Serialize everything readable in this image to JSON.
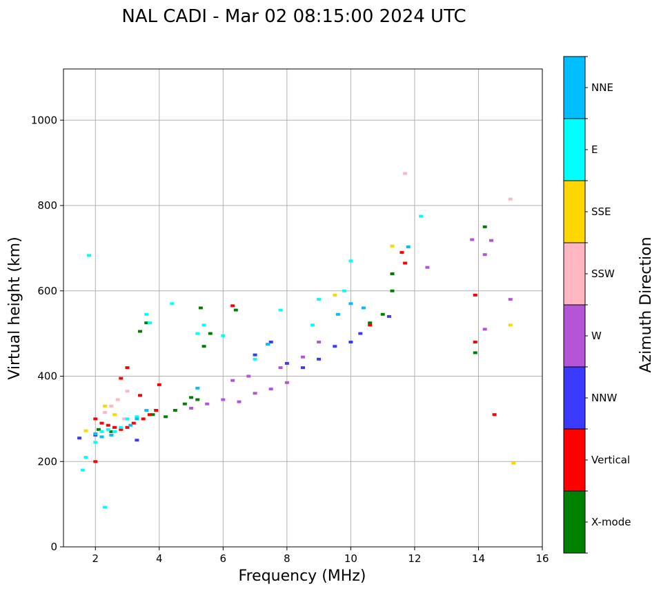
{
  "chart_data": {
    "type": "scatter",
    "title": "NAL CADI - Mar 02 08:15:00 2024 UTC",
    "xlabel": "Frequency (MHz)",
    "ylabel": "Virtual height (km)",
    "xlim": [
      1,
      16
    ],
    "ylim": [
      0,
      1120
    ],
    "xticks": [
      "2",
      "4",
      "6",
      "8",
      "10",
      "12",
      "14",
      "16"
    ],
    "yticks": [
      "0",
      "200",
      "400",
      "600",
      "800",
      "1000"
    ],
    "grid": true,
    "colorbar": {
      "label": "Azimuth Direction",
      "categories": [
        {
          "name": "X-mode",
          "color": "#008000"
        },
        {
          "name": "Vertical",
          "color": "#ff0000"
        },
        {
          "name": "NNW",
          "color": "#3a3aff"
        },
        {
          "name": "W",
          "color": "#b455d6"
        },
        {
          "name": "SSW",
          "color": "#ffb6c1"
        },
        {
          "name": "SSE",
          "color": "#ffd700"
        },
        {
          "name": "E",
          "color": "#00ffff"
        },
        {
          "name": "NNE",
          "color": "#00bfff"
        }
      ]
    },
    "series": [
      {
        "name": "X-mode",
        "points": [
          [
            2.1,
            275
          ],
          [
            2.5,
            270
          ],
          [
            3.8,
            310
          ],
          [
            4.2,
            305
          ],
          [
            4.5,
            320
          ],
          [
            4.8,
            335
          ],
          [
            5.0,
            350
          ],
          [
            5.2,
            345
          ],
          [
            6.4,
            555
          ],
          [
            10.6,
            525
          ],
          [
            11.0,
            545
          ],
          [
            11.3,
            600
          ],
          [
            11.3,
            640
          ],
          [
            13.9,
            455
          ],
          [
            14.2,
            750
          ],
          [
            3.6,
            525
          ],
          [
            3.4,
            505
          ],
          [
            5.4,
            470
          ],
          [
            5.6,
            500
          ],
          [
            5.3,
            560
          ]
        ]
      },
      {
        "name": "Vertical",
        "points": [
          [
            2.0,
            300
          ],
          [
            2.2,
            290
          ],
          [
            2.4,
            285
          ],
          [
            2.6,
            280
          ],
          [
            2.8,
            275
          ],
          [
            3.0,
            280
          ],
          [
            3.2,
            290
          ],
          [
            3.5,
            300
          ],
          [
            3.7,
            310
          ],
          [
            3.9,
            320
          ],
          [
            4.0,
            380
          ],
          [
            3.0,
            420
          ],
          [
            2.8,
            395
          ],
          [
            3.4,
            355
          ],
          [
            6.3,
            565
          ],
          [
            10.6,
            520
          ],
          [
            11.7,
            665
          ],
          [
            11.6,
            690
          ],
          [
            13.9,
            480
          ],
          [
            13.9,
            590
          ],
          [
            14.5,
            310
          ],
          [
            2.0,
            200
          ]
        ]
      },
      {
        "name": "NNW",
        "points": [
          [
            1.5,
            255
          ],
          [
            2.0,
            262
          ],
          [
            3.3,
            250
          ],
          [
            7.0,
            450
          ],
          [
            7.5,
            480
          ],
          [
            8.0,
            430
          ],
          [
            8.5,
            420
          ],
          [
            9.0,
            440
          ],
          [
            9.5,
            470
          ],
          [
            10.0,
            480
          ],
          [
            10.3,
            500
          ],
          [
            11.2,
            540
          ]
        ]
      },
      {
        "name": "W",
        "points": [
          [
            5.0,
            325
          ],
          [
            5.5,
            335
          ],
          [
            6.0,
            345
          ],
          [
            6.5,
            340
          ],
          [
            7.0,
            360
          ],
          [
            7.5,
            370
          ],
          [
            8.0,
            385
          ],
          [
            6.8,
            400
          ],
          [
            6.3,
            390
          ],
          [
            7.8,
            420
          ],
          [
            8.5,
            445
          ],
          [
            9.0,
            480
          ],
          [
            12.4,
            655
          ],
          [
            13.8,
            720
          ],
          [
            14.2,
            685
          ],
          [
            14.2,
            510
          ],
          [
            14.4,
            718
          ],
          [
            15.0,
            580
          ]
        ]
      },
      {
        "name": "SSW",
        "points": [
          [
            2.3,
            315
          ],
          [
            2.5,
            330
          ],
          [
            2.7,
            345
          ],
          [
            3.0,
            365
          ],
          [
            2.9,
            300
          ],
          [
            11.7,
            875
          ],
          [
            15.0,
            815
          ]
        ]
      },
      {
        "name": "SSE",
        "points": [
          [
            1.7,
            272
          ],
          [
            2.3,
            330
          ],
          [
            2.6,
            310
          ],
          [
            9.5,
            590
          ],
          [
            11.3,
            705
          ],
          [
            15.0,
            520
          ],
          [
            15.1,
            196
          ]
        ]
      },
      {
        "name": "E",
        "points": [
          [
            1.6,
            180
          ],
          [
            1.7,
            210
          ],
          [
            2.0,
            245
          ],
          [
            2.2,
            270
          ],
          [
            2.4,
            275
          ],
          [
            2.6,
            270
          ],
          [
            2.8,
            280
          ],
          [
            3.0,
            300
          ],
          [
            3.3,
            305
          ],
          [
            3.6,
            545
          ],
          [
            3.7,
            525
          ],
          [
            4.4,
            570
          ],
          [
            5.2,
            500
          ],
          [
            5.4,
            520
          ],
          [
            6.0,
            495
          ],
          [
            7.0,
            440
          ],
          [
            7.8,
            555
          ],
          [
            8.8,
            520
          ],
          [
            9.0,
            580
          ],
          [
            9.8,
            600
          ],
          [
            10.0,
            670
          ],
          [
            12.2,
            775
          ],
          [
            2.3,
            93
          ],
          [
            1.8,
            683
          ]
        ]
      },
      {
        "name": "NNE",
        "points": [
          [
            2.0,
            265
          ],
          [
            2.2,
            258
          ],
          [
            2.5,
            262
          ],
          [
            3.1,
            285
          ],
          [
            3.3,
            300
          ],
          [
            3.6,
            320
          ],
          [
            5.2,
            372
          ],
          [
            7.4,
            475
          ],
          [
            9.6,
            545
          ],
          [
            10.0,
            570
          ],
          [
            10.4,
            560
          ],
          [
            11.8,
            703
          ]
        ]
      }
    ],
    "annotations": []
  }
}
